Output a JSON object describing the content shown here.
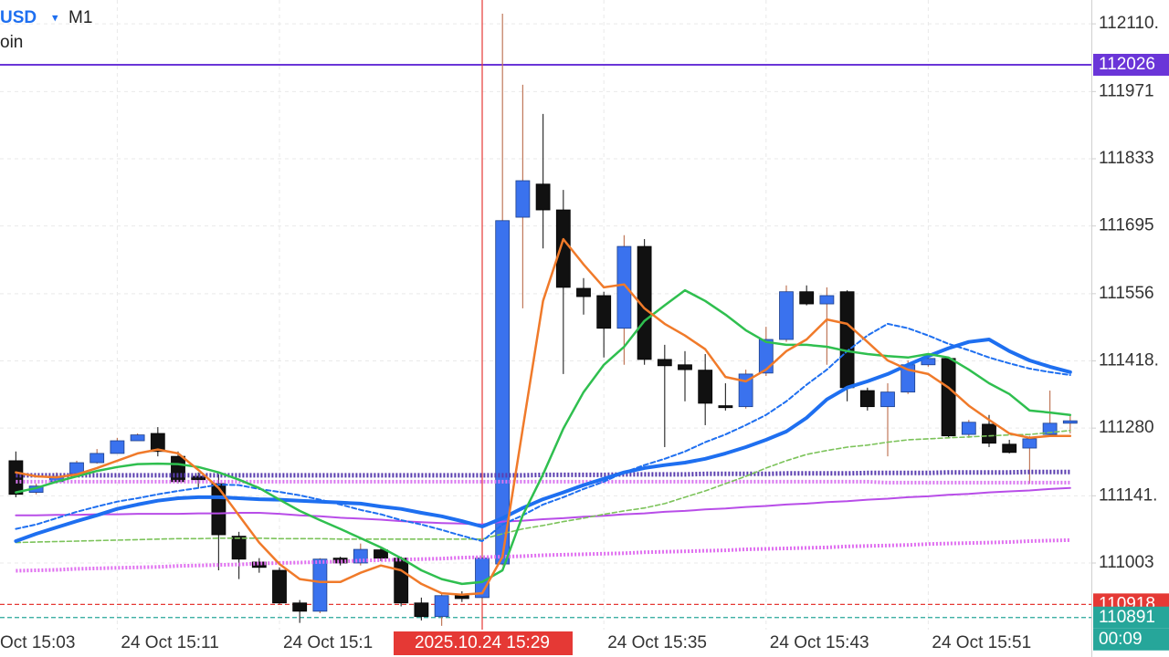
{
  "chart_data": {
    "type": "candlestick",
    "symbol": "USD",
    "timeframe": "M1",
    "subtitle": "oin",
    "categories": [
      "Oct 15:03",
      null,
      null,
      null,
      null,
      null,
      null,
      null,
      "24 Oct 15:11",
      null,
      null,
      null,
      null,
      null,
      null,
      null,
      "24 Oct 15:1",
      null,
      null,
      null,
      null,
      null,
      null,
      null,
      null,
      null,
      "2025.10.24 15:29",
      null,
      null,
      null,
      null,
      null,
      "24 Oct 15:35",
      null,
      null,
      null,
      null,
      null,
      null,
      null,
      "24 Oct 15:43",
      null,
      null,
      null,
      null,
      null,
      null,
      null,
      "24 Oct 15:51",
      null,
      null,
      null,
      null,
      null,
      null,
      null
    ],
    "open": [
      null,
      null,
      null,
      111213,
      111148,
      111170,
      111185,
      111209,
      111228,
      111254,
      111269,
      111222,
      111181,
      111166,
      111058,
      111005,
      110988,
      110921,
      110904,
      111013,
      111003,
      111030,
      111013,
      110921,
      110893,
      110936,
      110932,
      111001,
      111713,
      111781,
      111728,
      111567,
      111552,
      111485,
      111653,
      111421,
      111410,
      111399,
      111326,
      111324,
      111393,
      111462,
      111560,
      111535,
      111560,
      111357,
      111324,
      111354,
      111410,
      111423,
      111267,
      111288,
      111247,
      111239,
      111267,
      111290
    ],
    "high": [
      null,
      null,
      null,
      111232,
      111166,
      111189,
      111213,
      111237,
      111260,
      111269,
      111282,
      111232,
      111189,
      111185,
      111067,
      111013,
      110994,
      110927,
      111013,
      111016,
      111043,
      111035,
      111016,
      110932,
      110941,
      110945,
      111020,
      112131,
      111985,
      111925,
      111769,
      111588,
      111560,
      111676,
      111668,
      111451,
      111438,
      111432,
      111372,
      111400,
      111488,
      111573,
      111573,
      111569,
      111563,
      111363,
      111372,
      111419,
      111428,
      111425,
      111297,
      111307,
      111256,
      111264,
      111357,
      111307
    ],
    "low": [
      null,
      null,
      null,
      111138,
      111144,
      111166,
      111181,
      111207,
      111228,
      111254,
      111222,
      111166,
      111157,
      110988,
      110970,
      110983,
      110919,
      110880,
      110900,
      110998,
      110998,
      111007,
      110914,
      110885,
      110874,
      110923,
      110923,
      110998,
      111526,
      111649,
      111391,
      111513,
      111425,
      111410,
      111410,
      111241,
      111335,
      111286,
      111316,
      111320,
      111387,
      111457,
      111532,
      111410,
      111335,
      111316,
      111222,
      111350,
      111406,
      111260,
      111260,
      111241,
      111228,
      111166,
      111264,
      111269
    ],
    "close": [
      null,
      null,
      null,
      111144,
      111161,
      111181,
      111209,
      111228,
      111254,
      111266,
      111232,
      111170,
      111174,
      111061,
      111011,
      110994,
      110921,
      110904,
      111011,
      111003,
      111031,
      111013,
      110921,
      110893,
      110936,
      110930,
      111013,
      111706,
      111788,
      111728,
      111569,
      111550,
      111485,
      111653,
      111421,
      111408,
      111400,
      111331,
      111322,
      111391,
      111462,
      111560,
      111535,
      111552,
      111363,
      111324,
      111354,
      111410,
      111423,
      111264,
      111292,
      111249,
      111230,
      111258,
      111290,
      111295
    ],
    "up_color": "#3a72ee",
    "down_color": "#111111",
    "series": [
      {
        "color": "#b84de8",
        "style": "solid",
        "width": 2,
        "values": [
          null,
          null,
          null,
          111101,
          111101,
          111102,
          111102,
          111103,
          111103,
          111104,
          111104,
          111104,
          111105,
          111105,
          111106,
          111106,
          111104,
          111101,
          111099,
          111096,
          111094,
          111092,
          111089,
          111087,
          111085,
          111084,
          111082,
          111088,
          111090,
          111093,
          111095,
          111098,
          111100,
          111103,
          111105,
          111108,
          111110,
          111113,
          111115,
          111118,
          111120,
          111123,
          111125,
          111128,
          111130,
          111133,
          111135,
          111138,
          111140,
          111143,
          111145,
          111148,
          111150,
          111152,
          111155,
          111157
        ]
      },
      {
        "color": "#e070f0",
        "style": "dotted",
        "width": 4,
        "values": [
          null,
          null,
          null,
          110987,
          110988,
          110989,
          110991,
          110992,
          110993,
          110994,
          110995,
          110997,
          110998,
          110999,
          111000,
          111002,
          111003,
          111004,
          111005,
          111006,
          111008,
          111009,
          111010,
          111011,
          111012,
          111014,
          111015,
          111016,
          111017,
          111019,
          111020,
          111021,
          111022,
          111023,
          111025,
          111026,
          111027,
          111028,
          111029,
          111031,
          111032,
          111033,
          111034,
          111035,
          111037,
          111038,
          111039,
          111040,
          111042,
          111043,
          111044,
          111045,
          111046,
          111048,
          111049,
          111050
        ]
      },
      {
        "color": "#d977f0",
        "style": "dotted",
        "width": 4,
        "values": [
          null,
          null,
          null,
          111170,
          111170,
          111170,
          111170,
          111170,
          111170,
          111170,
          111170,
          111170,
          111170,
          111170,
          111170,
          111170,
          111170,
          111170,
          111170,
          111170,
          111170,
          111170,
          111170,
          111170,
          111170,
          111170,
          111170,
          111170,
          111170,
          111170,
          111170,
          111170,
          111170,
          111170,
          111170,
          111170,
          111170,
          111170,
          111170,
          111170,
          111170,
          111170,
          111170,
          111170,
          111170,
          111170,
          111168,
          111168,
          111168,
          111168,
          111168,
          111168,
          111168,
          111168,
          111168,
          111168
        ]
      },
      {
        "color": "#5b3fb0",
        "style": "dotted",
        "width": 5,
        "values": [
          null,
          null,
          null,
          111183,
          111183,
          111183,
          111183,
          111183,
          111183,
          111183,
          111183,
          111183,
          111183,
          111183,
          111183,
          111183,
          111183,
          111183,
          111183,
          111183,
          111183,
          111183,
          111183,
          111183,
          111183,
          111183,
          111183,
          111183,
          111183,
          111184,
          111184,
          111184,
          111184,
          111185,
          111185,
          111185,
          111185,
          111186,
          111186,
          111186,
          111186,
          111187,
          111187,
          111187,
          111187,
          111188,
          111188,
          111188,
          111188,
          111189,
          111189,
          111189,
          111189,
          111190,
          111190,
          111190
        ]
      },
      {
        "color": "#7cc35a",
        "style": "dashed",
        "width": 1.6,
        "values": [
          null,
          null,
          null,
          111045,
          111046,
          111047,
          111048,
          111049,
          111050,
          111051,
          111052,
          111053,
          111053,
          111054,
          111054,
          111054,
          111053,
          111053,
          111053,
          111052,
          111052,
          111052,
          111052,
          111052,
          111052,
          111052,
          111052,
          111063,
          111073,
          111080,
          111088,
          111095,
          111103,
          111110,
          111116,
          111125,
          111138,
          111151,
          111166,
          111181,
          111198,
          111213,
          111226,
          111234,
          111241,
          111245,
          111251,
          111256,
          111258,
          111260,
          111262,
          111264,
          111266,
          111267,
          111271,
          111275
        ]
      },
      {
        "color": "#1e6ff0",
        "style": "dashed",
        "width": 2,
        "values": [
          null,
          null,
          null,
          111073,
          111082,
          111095,
          111108,
          111119,
          111129,
          111136,
          111144,
          111151,
          111157,
          111164,
          111163,
          111155,
          111149,
          111142,
          111133,
          111123,
          111112,
          111103,
          111091,
          111082,
          111071,
          111059,
          111048,
          111082,
          111101,
          111123,
          111138,
          111155,
          111170,
          111189,
          111204,
          111217,
          111232,
          111251,
          111267,
          111286,
          111307,
          111335,
          111369,
          111400,
          111438,
          111470,
          111494,
          111485,
          111470,
          111453,
          111440,
          111425,
          111413,
          111402,
          111395,
          111389
        ]
      },
      {
        "color": "#1e6ff0",
        "style": "solid",
        "width": 4,
        "values": [
          null,
          null,
          null,
          111048,
          111063,
          111076,
          111089,
          111101,
          111114,
          111123,
          111131,
          111136,
          111138,
          111138,
          111136,
          111134,
          111133,
          111131,
          111129,
          111127,
          111125,
          111119,
          111114,
          111106,
          111099,
          111089,
          111078,
          111095,
          111116,
          111134,
          111148,
          111163,
          111176,
          111189,
          111198,
          111204,
          111209,
          111217,
          111228,
          111241,
          111256,
          111273,
          111301,
          111339,
          111363,
          111376,
          111391,
          111410,
          111428,
          111444,
          111457,
          111462,
          111438,
          111419,
          111406,
          111395
        ]
      },
      {
        "color": "#2fbf4f",
        "style": "solid",
        "width": 2.5,
        "values": [
          null,
          null,
          null,
          111148,
          111157,
          111170,
          111181,
          111192,
          111200,
          111206,
          111207,
          111206,
          111200,
          111189,
          111174,
          111157,
          111133,
          111110,
          111091,
          111073,
          111054,
          111035,
          111013,
          110988,
          110970,
          110960,
          110964,
          110988,
          111101,
          111185,
          111279,
          111354,
          111410,
          111447,
          111500,
          111532,
          111563,
          111541,
          111513,
          111481,
          111457,
          111451,
          111451,
          111447,
          111438,
          111432,
          111428,
          111425,
          111432,
          111425,
          111400,
          111372,
          111350,
          111316,
          111312,
          111307
        ]
      },
      {
        "color": "#f07a2a",
        "style": "solid",
        "width": 2.5,
        "values": [
          null,
          null,
          null,
          111189,
          111181,
          111179,
          111185,
          111198,
          111213,
          111228,
          111236,
          111228,
          111194,
          111157,
          111101,
          111045,
          111001,
          110970,
          110964,
          110964,
          110983,
          110998,
          110988,
          110960,
          110941,
          110938,
          110941,
          111016,
          111279,
          111541,
          111668,
          111616,
          111569,
          111575,
          111526,
          111494,
          111470,
          111442,
          111385,
          111376,
          111400,
          111438,
          111462,
          111503,
          111494,
          111457,
          111419,
          111400,
          111391,
          111363,
          111326,
          111297,
          111269,
          111260,
          111264,
          111264
        ]
      }
    ],
    "price_lines": [
      {
        "value": 112026,
        "color": "#6a35d8",
        "style": "solid"
      },
      {
        "value": 110918,
        "color": "#e53935",
        "style": "dashed"
      },
      {
        "value": 110891,
        "color": "#26a69a",
        "style": "dashed"
      }
    ],
    "timer": "00:09",
    "crosshair_color": "#e53935",
    "ylim": [
      110810,
      112159
    ],
    "yticks": [
      {
        "value": 112110,
        "label": "112110."
      },
      111971,
      111833,
      111695,
      111556,
      {
        "value": 111418,
        "label": "111418."
      },
      111280,
      {
        "value": 111141,
        "label": "111141."
      },
      111003
    ],
    "grid": true
  }
}
